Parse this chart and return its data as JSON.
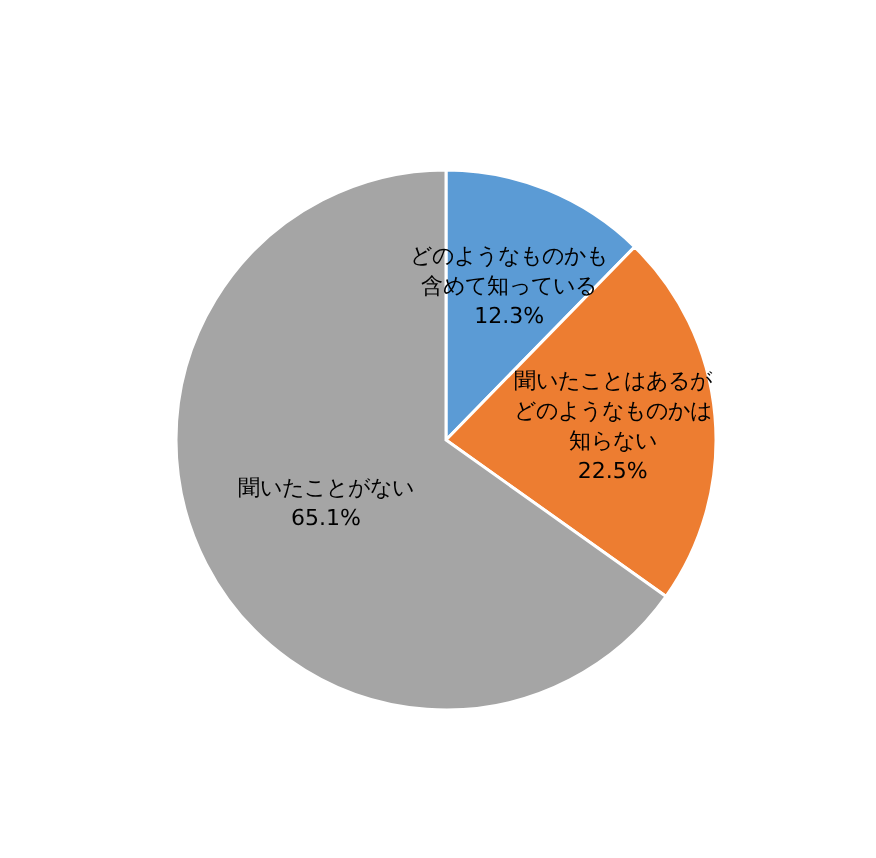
{
  "chart_data": {
    "type": "pie",
    "categories": [
      "どのようなものかも含めて知っている",
      "聞いたことはあるがどのようなものかは知らない",
      "聞いたことがない"
    ],
    "values": [
      12.3,
      22.5,
      65.1
    ],
    "value_labels": [
      "12.3%",
      "22.5%",
      "65.1%"
    ],
    "colors": [
      "#5b9bd5",
      "#ed7d31",
      "#a5a5a5"
    ],
    "legend": false
  }
}
